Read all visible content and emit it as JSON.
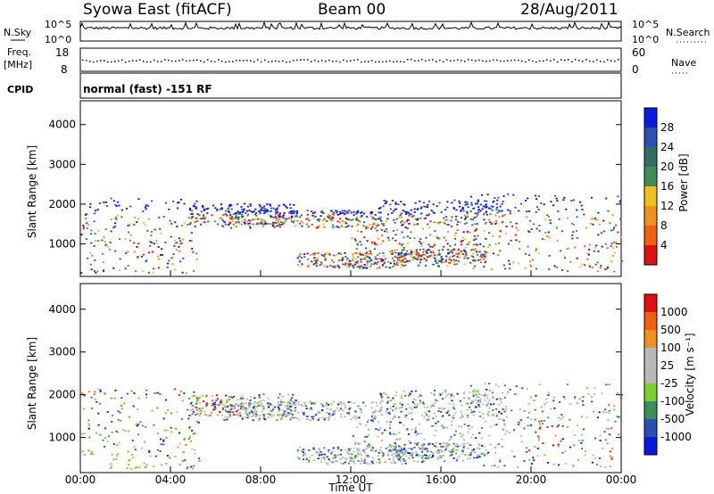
{
  "header": {
    "station": "Syowa East (fitACF)",
    "beam": "Beam 00",
    "date": "28/Aug/2011"
  },
  "top_panels": {
    "nsky_label": "N.Sky",
    "nsky_ticks": [
      "10^5",
      "10^0"
    ],
    "nsearch_label": "N.Search",
    "nsearch_ticks": [
      "10^5",
      "10^0"
    ],
    "freq_label_1": "Freq.",
    "freq_label_2": "[MHz]",
    "freq_ticks": [
      "18",
      "8"
    ],
    "nave_label": "Nave",
    "nave_ticks": [
      "60",
      "0"
    ],
    "cpid_label": "CPID",
    "cpid_text": "normal (fast) -151 RF"
  },
  "colors": {
    "power_scale": [
      "#0a1be0",
      "#2b4fb3",
      "#2f6f62",
      "#3d8f5a",
      "#f0c020",
      "#f09020",
      "#f06010",
      "#e01010"
    ],
    "velocity_scale": [
      "#e01010",
      "#f06010",
      "#f09020",
      "#b8b8b8",
      "#b8b8b8",
      "#7ad030",
      "#3d8f5a",
      "#2b4fb3",
      "#0a1be0"
    ]
  },
  "chart_data": [
    {
      "type": "heatmap",
      "name_hint": "power",
      "ylabel": "Slant Range [km]",
      "xlabel": "",
      "y_ticks": [
        "4000",
        "3000",
        "2000",
        "1000"
      ],
      "ylim": [
        180,
        4600
      ],
      "colorbar_label": "Power [dB]",
      "colorbar_ticks": [
        "28",
        "24",
        "20",
        "16",
        "12",
        "8",
        "4"
      ]
    },
    {
      "type": "heatmap",
      "name_hint": "velocity",
      "ylabel": "Slant Range [km]",
      "xlabel": "Time UT",
      "x_ticks": [
        "00:00",
        "04:00",
        "08:00",
        "12:00",
        "16:00",
        "20:00",
        "00:00"
      ],
      "y_ticks": [
        "4000",
        "3000",
        "2000",
        "1000"
      ],
      "ylim": [
        180,
        4600
      ],
      "colorbar_label": "Velocity [m s⁻¹]",
      "colorbar_ticks": [
        "1000",
        "500",
        "100",
        "25",
        "-25",
        "-100",
        "-500",
        "-1000"
      ]
    }
  ]
}
